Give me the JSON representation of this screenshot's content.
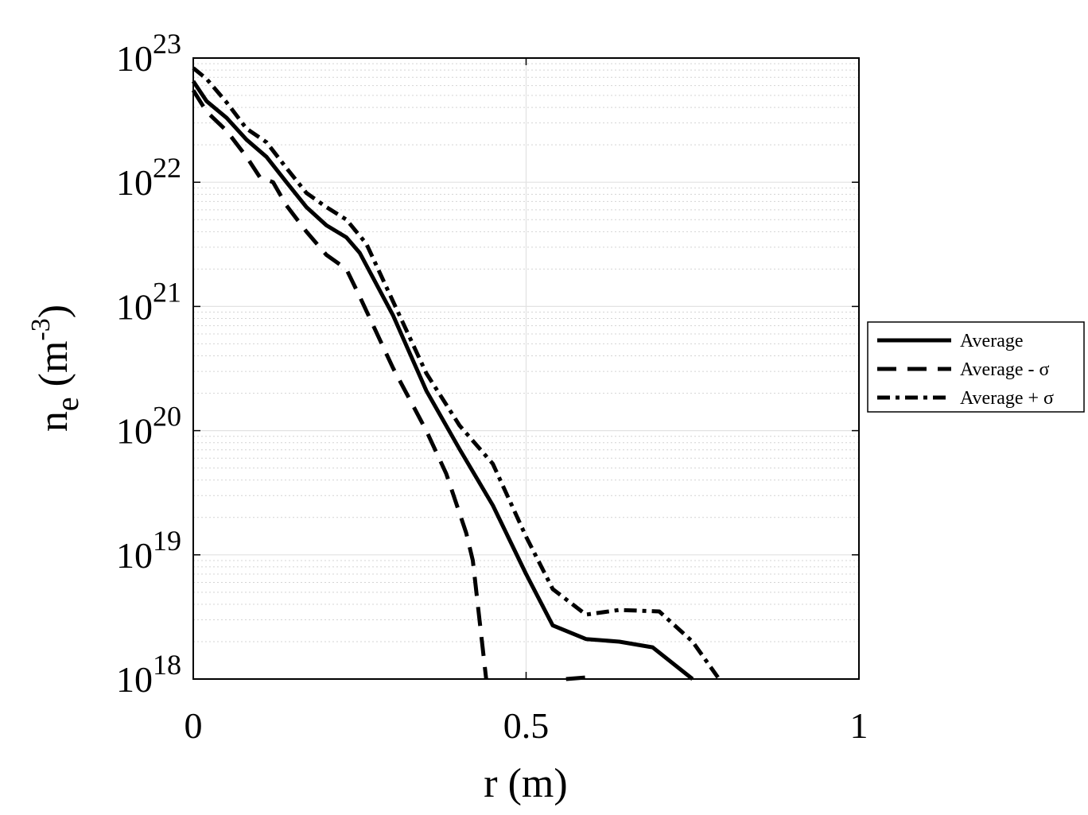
{
  "chart_data": {
    "type": "line",
    "xlabel": "r (m)",
    "ylabel": {
      "base": "n",
      "sub": "e",
      "unit_open": " (m",
      "unit_exp": "-3",
      "unit_close": ")"
    },
    "xlim": [
      0,
      1
    ],
    "ylim": [
      1e+18,
      1e+23
    ],
    "yscale": "log",
    "grid": true,
    "minor_grid_y": true,
    "x_ticks": [
      "0",
      "0.5",
      "1"
    ],
    "x_tick_values": [
      0,
      0.5,
      1
    ],
    "y_ticks": [
      {
        "base": "10",
        "exp": "18",
        "value": 1e+18
      },
      {
        "base": "10",
        "exp": "19",
        "value": 1e+19
      },
      {
        "base": "10",
        "exp": "20",
        "value": 1e+20
      },
      {
        "base": "10",
        "exp": "21",
        "value": 1e+21
      },
      {
        "base": "10",
        "exp": "22",
        "value": 1e+22
      },
      {
        "base": "10",
        "exp": "23",
        "value": 1e+23
      }
    ],
    "legend_position": "outside-right",
    "series": [
      {
        "name": "Average",
        "style": "solid",
        "x": [
          0,
          0.02,
          0.05,
          0.08,
          0.11,
          0.14,
          0.17,
          0.2,
          0.23,
          0.25,
          0.3,
          0.35,
          0.4,
          0.45,
          0.5,
          0.54,
          0.59,
          0.64,
          0.69,
          0.75
        ],
        "y": [
          6.5e+22,
          4.5e+22,
          3.3e+22,
          2.2e+22,
          1.6e+22,
          1e+22,
          6.3e+21,
          4.5e+21,
          3.6e+21,
          2.7e+21,
          8.5e+20,
          2.1e+20,
          7.1e+19,
          2.5e+19,
          7e+18,
          2.7e+18,
          2.1e+18,
          2e+18,
          1.8e+18,
          1e+18
        ]
      },
      {
        "name": "Average - σ",
        "style": "dashed",
        "x": [
          0,
          0.02,
          0.05,
          0.08,
          0.1,
          0.12,
          0.14,
          0.17,
          0.2,
          0.23,
          0.25,
          0.3,
          0.35,
          0.38,
          0.41,
          0.42,
          0.43,
          0.44
        ],
        "y": [
          5.5e+22,
          3.7e+22,
          2.6e+22,
          1.6e+22,
          1.1e+22,
          1e+22,
          6.5e+21,
          4e+21,
          2.6e+21,
          2e+21,
          1.2e+21,
          3.2e+20,
          1e+20,
          4.5e+19,
          1.5e+19,
          9e+18,
          3e+18,
          1e+18
        ]
      },
      {
        "name": "Average + σ",
        "style": "dashdot",
        "x": [
          0,
          0.02,
          0.05,
          0.08,
          0.11,
          0.14,
          0.17,
          0.2,
          0.23,
          0.26,
          0.3,
          0.35,
          0.4,
          0.45,
          0.5,
          0.54,
          0.59,
          0.64,
          0.7,
          0.75,
          0.79
        ],
        "y": [
          8.3e+22,
          6.8e+22,
          4.4e+22,
          2.7e+22,
          2.1e+22,
          1.3e+22,
          8.2e+21,
          6.3e+21,
          5e+21,
          3.2e+21,
          1.1e+21,
          2.9e+20,
          1.1e+20,
          5.4e+19,
          1.4e+19,
          5.3e+18,
          3.3e+18,
          3.6e+18,
          3.5e+18,
          2e+18,
          1e+18
        ]
      },
      {
        "name": "",
        "style": "dashed",
        "legend": false,
        "x": [
          0.56,
          0.59
        ],
        "y": [
          1e+18,
          1.03e+18
        ]
      }
    ],
    "legend": [
      {
        "label": "Average",
        "style": "solid"
      },
      {
        "label": "Average - σ",
        "style": "dashed"
      },
      {
        "label": "Average + σ",
        "style": "dashdot"
      }
    ]
  }
}
